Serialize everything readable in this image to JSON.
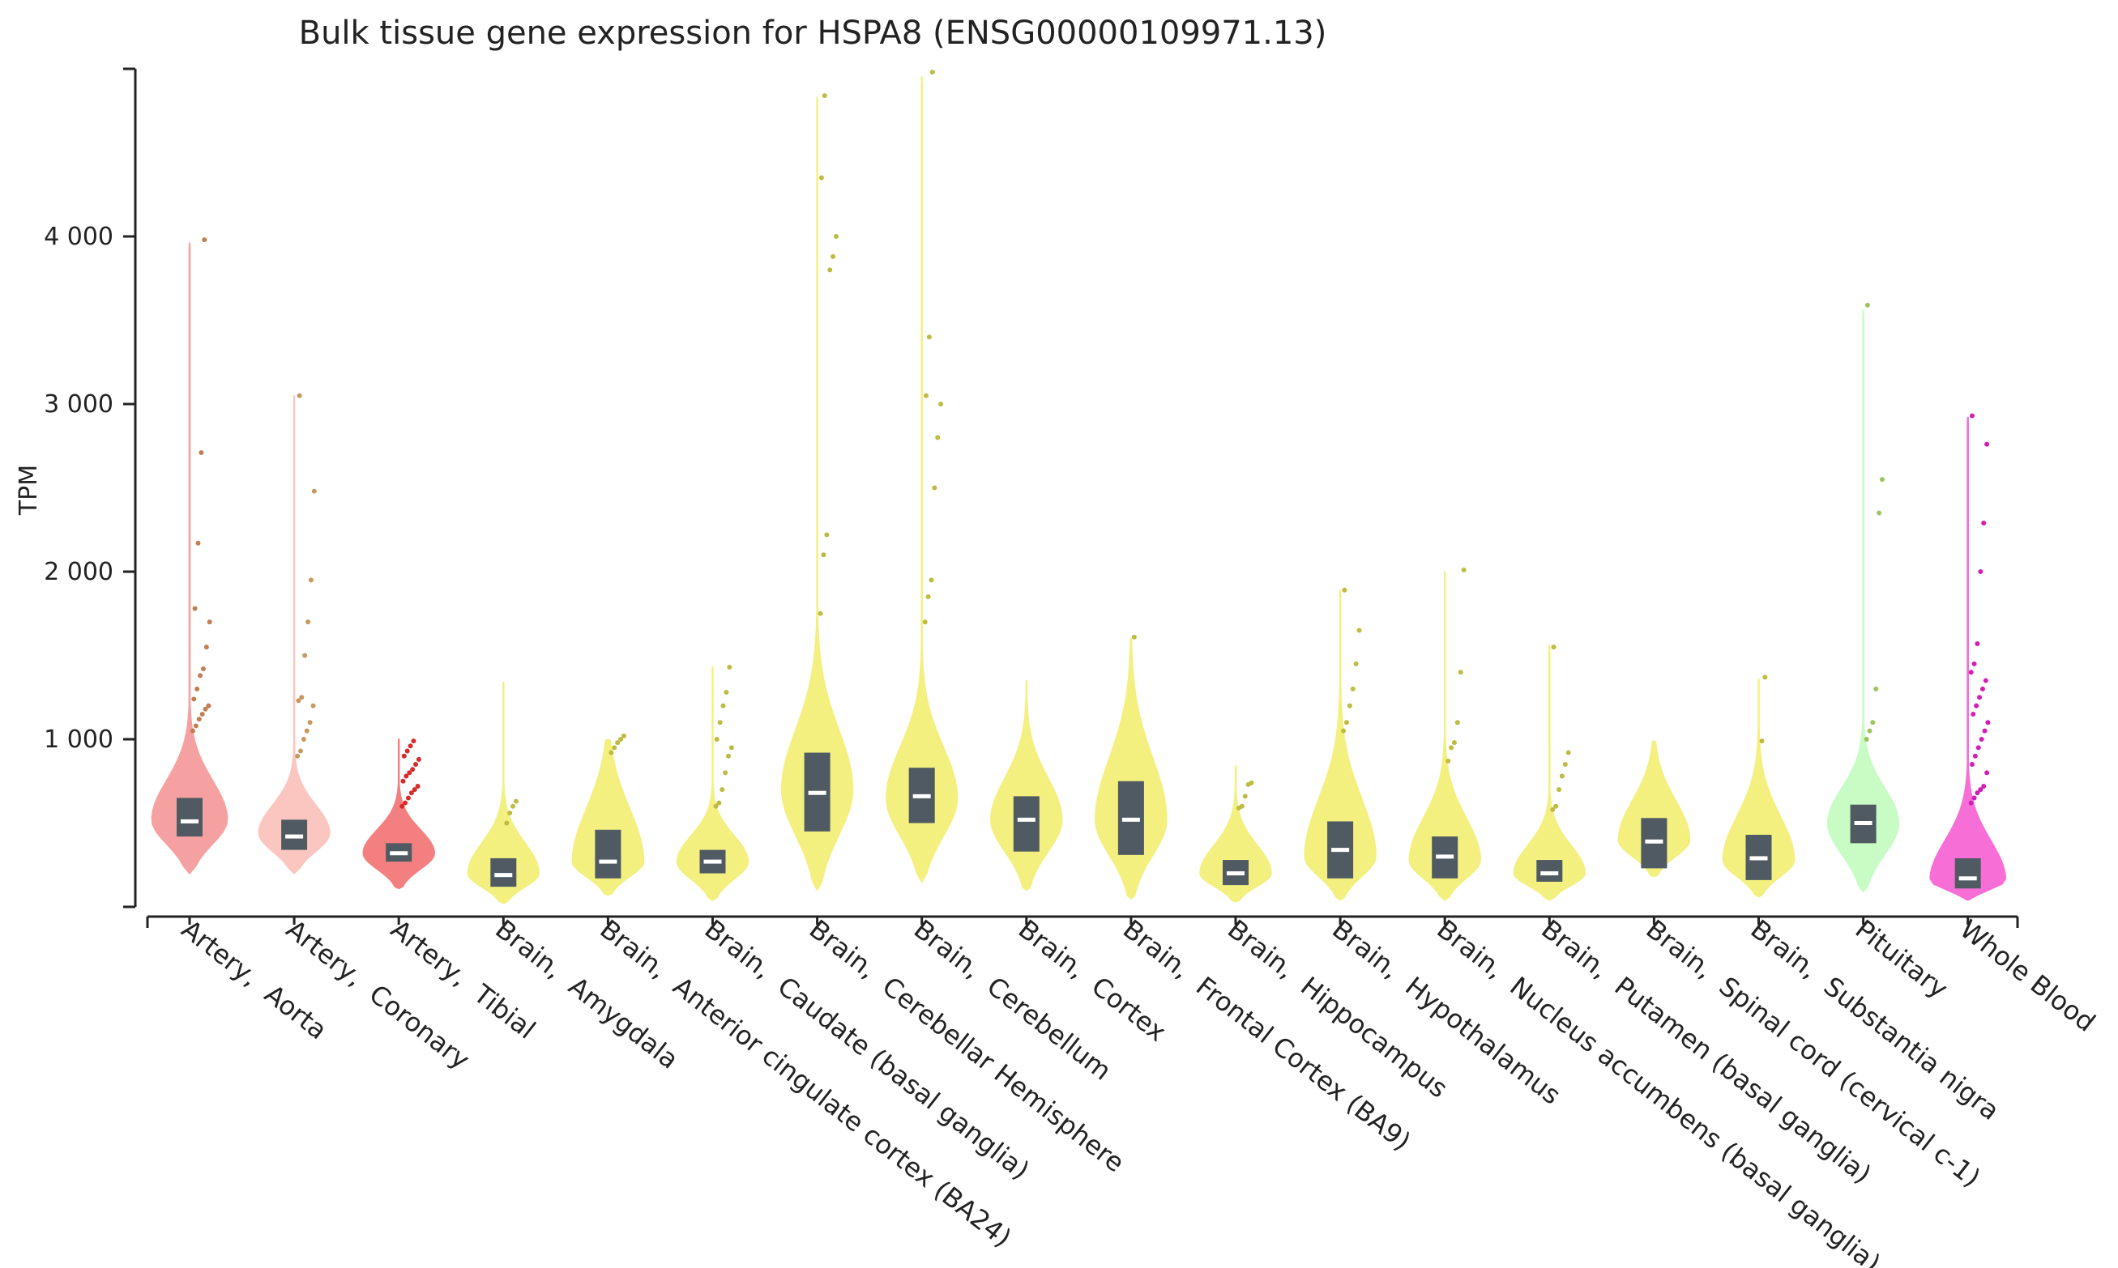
{
  "chart_data": {
    "type": "violin",
    "title": "Bulk tissue gene expression for HSPA8 (ENSG00000109971.13)",
    "xlabel": "",
    "ylabel": "TPM",
    "ylim": [
      0,
      5000
    ],
    "yticks": [
      {
        "value": 1000,
        "label": "1 000"
      },
      {
        "value": 2000,
        "label": "2 000"
      },
      {
        "value": 3000,
        "label": "3 000"
      },
      {
        "value": 4000,
        "label": "4 000"
      }
    ],
    "categories": [
      {
        "label": "Artery,  Aorta",
        "color": "#f6a1a1",
        "min": 200,
        "max": 3960,
        "q1": 420,
        "median": 510,
        "q3": 650,
        "mode": 520,
        "width": 0.85,
        "outliers": [
          1050,
          1080,
          1120,
          1150,
          1180,
          1200,
          1240,
          1300,
          1380,
          1420,
          1550,
          1700,
          1780,
          2170,
          2710,
          3980
        ]
      },
      {
        "label": "Artery,  Coronary",
        "color": "#fbc6c0",
        "min": 200,
        "max": 3050,
        "q1": 340,
        "median": 420,
        "q3": 520,
        "mode": 440,
        "width": 0.8,
        "outliers": [
          900,
          930,
          1000,
          1050,
          1100,
          1200,
          1230,
          1250,
          1500,
          1700,
          1950,
          2480,
          3050
        ]
      },
      {
        "label": "Artery,  Tibial",
        "color": "#f37f80",
        "min": 110,
        "max": 1000,
        "q1": 270,
        "median": 320,
        "q3": 380,
        "mode": 320,
        "width": 0.8,
        "outliers": [
          600,
          620,
          650,
          680,
          700,
          720,
          750,
          780,
          800,
          820,
          850,
          880,
          900,
          930,
          960,
          990
        ],
        "outlier_color": "#d62c2c"
      },
      {
        "label": "Brain,  Amygdala",
        "color": "#f3f080",
        "min": 20,
        "max": 1340,
        "q1": 120,
        "median": 190,
        "q3": 290,
        "mode": 200,
        "width": 0.8,
        "outliers": [
          500,
          560,
          600,
          630
        ]
      },
      {
        "label": "Brain,  Anterior cingulate cortex (BA24)",
        "color": "#f3f080",
        "min": 70,
        "max": 1000,
        "q1": 170,
        "median": 270,
        "q3": 460,
        "mode": 270,
        "width": 0.8,
        "outliers": [
          920,
          950,
          980,
          1000,
          1020
        ]
      },
      {
        "label": "Brain,  Caudate (basal ganglia)",
        "color": "#f3f080",
        "min": 40,
        "max": 1430,
        "q1": 200,
        "median": 270,
        "q3": 340,
        "mode": 270,
        "width": 0.8,
        "outliers": [
          600,
          620,
          700,
          800,
          900,
          950,
          1000,
          1100,
          1200,
          1280,
          1430
        ]
      },
      {
        "label": "Brain,  Cerebellar Hemisphere",
        "color": "#f3f080",
        "min": 100,
        "max": 4830,
        "q1": 450,
        "median": 680,
        "q3": 920,
        "mode": 700,
        "width": 0.8,
        "outliers": [
          1750,
          2100,
          2220,
          3800,
          3880,
          4000,
          4350,
          4840
        ]
      },
      {
        "label": "Brain,  Cerebellum",
        "color": "#f3f080",
        "min": 150,
        "max": 4950,
        "q1": 500,
        "median": 660,
        "q3": 830,
        "mode": 650,
        "width": 0.8,
        "outliers": [
          1700,
          1850,
          1950,
          2500,
          2800,
          3000,
          3050,
          3400,
          4980
        ]
      },
      {
        "label": "Brain,  Cortex",
        "color": "#f3f080",
        "min": 100,
        "max": 1350,
        "q1": 330,
        "median": 520,
        "q3": 660,
        "mode": 520,
        "width": 0.8,
        "outliers": []
      },
      {
        "label": "Brain,  Frontal Cortex (BA9)",
        "color": "#f3f080",
        "min": 50,
        "max": 1600,
        "q1": 310,
        "median": 520,
        "q3": 750,
        "mode": 520,
        "width": 0.8,
        "outliers": [
          1610
        ]
      },
      {
        "label": "Brain,  Hippocampus",
        "color": "#f3f080",
        "min": 30,
        "max": 840,
        "q1": 130,
        "median": 200,
        "q3": 280,
        "mode": 200,
        "width": 0.8,
        "outliers": [
          590,
          600,
          660,
          730,
          740
        ]
      },
      {
        "label": "Brain,  Hypothalamus",
        "color": "#f3f080",
        "min": 40,
        "max": 1890,
        "q1": 170,
        "median": 340,
        "q3": 510,
        "mode": 300,
        "width": 0.8,
        "outliers": [
          1050,
          1100,
          1200,
          1300,
          1450,
          1650,
          1890
        ]
      },
      {
        "label": "Brain,  Nucleus accumbens (basal ganglia)",
        "color": "#f3f080",
        "min": 40,
        "max": 2000,
        "q1": 170,
        "median": 300,
        "q3": 420,
        "mode": 280,
        "width": 0.8,
        "outliers": [
          870,
          950,
          980,
          1100,
          1400,
          2010
        ]
      },
      {
        "label": "Brain,  Putamen (basal ganglia)",
        "color": "#f3f080",
        "min": 40,
        "max": 1560,
        "q1": 150,
        "median": 200,
        "q3": 280,
        "mode": 200,
        "width": 0.8,
        "outliers": [
          580,
          600,
          700,
          780,
          850,
          920,
          1550
        ]
      },
      {
        "label": "Brain,  Spinal cord (cervical c-1)",
        "color": "#f3f080",
        "min": 180,
        "max": 990,
        "q1": 230,
        "median": 390,
        "q3": 530,
        "mode": 400,
        "width": 0.8,
        "outliers": []
      },
      {
        "label": "Brain,  Substantia nigra",
        "color": "#f3f080",
        "min": 60,
        "max": 1360,
        "q1": 160,
        "median": 290,
        "q3": 430,
        "mode": 280,
        "width": 0.8,
        "outliers": [
          990,
          1370
        ]
      },
      {
        "label": "Pituitary",
        "color": "#c8fcc4",
        "min": 90,
        "max": 3560,
        "q1": 380,
        "median": 500,
        "q3": 610,
        "mode": 500,
        "width": 0.8,
        "outliers": [
          1000,
          1050,
          1100,
          1300,
          2350,
          2550,
          3590
        ]
      },
      {
        "label": "Whole Blood",
        "color": "#f76ed6",
        "min": 40,
        "max": 2920,
        "q1": 110,
        "median": 170,
        "q3": 290,
        "mode": 160,
        "width": 0.85,
        "outliers": [
          620,
          650,
          680,
          700,
          720,
          800,
          850,
          900,
          950,
          1000,
          1050,
          1100,
          1150,
          1200,
          1250,
          1300,
          1350,
          1400,
          1450,
          1570,
          2000,
          2290,
          2760,
          2930
        ],
        "outlier_color": "#d21eb4"
      }
    ]
  }
}
